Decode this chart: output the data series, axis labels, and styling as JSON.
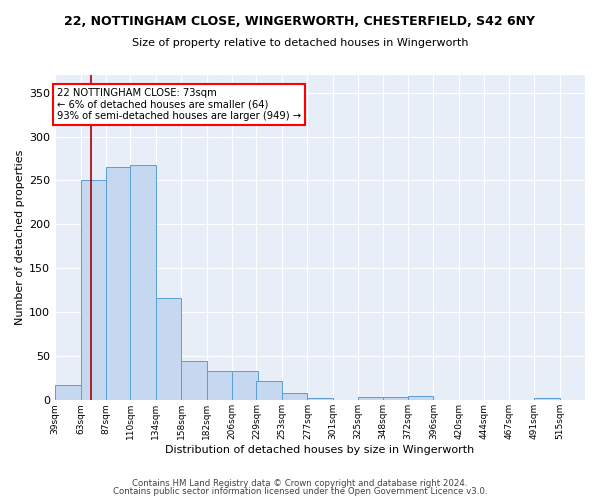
{
  "title_line1": "22, NOTTINGHAM CLOSE, WINGERWORTH, CHESTERFIELD, S42 6NY",
  "title_line2": "Size of property relative to detached houses in Wingerworth",
  "xlabel": "Distribution of detached houses by size in Wingerworth",
  "ylabel": "Number of detached properties",
  "bar_color": "#c5d8f0",
  "bar_edge_color": "#5a9fd4",
  "background_color": "#e8eef8",
  "grid_color": "#ffffff",
  "annotation_text": "22 NOTTINGHAM CLOSE: 73sqm\n← 6% of detached houses are smaller (64)\n93% of semi-detached houses are larger (949) →",
  "redline_x": 73,
  "categories": [
    "39sqm",
    "63sqm",
    "87sqm",
    "110sqm",
    "134sqm",
    "158sqm",
    "182sqm",
    "206sqm",
    "229sqm",
    "253sqm",
    "277sqm",
    "301sqm",
    "325sqm",
    "348sqm",
    "372sqm",
    "396sqm",
    "420sqm",
    "444sqm",
    "467sqm",
    "491sqm",
    "515sqm"
  ],
  "bin_edges": [
    39,
    63,
    87,
    110,
    134,
    158,
    182,
    206,
    229,
    253,
    277,
    301,
    325,
    348,
    372,
    396,
    420,
    444,
    467,
    491,
    515
  ],
  "bar_heights": [
    17,
    250,
    265,
    268,
    116,
    45,
    33,
    33,
    22,
    8,
    3,
    0,
    4,
    4,
    5,
    0,
    0,
    0,
    0,
    3,
    0
  ],
  "ylim": [
    0,
    370
  ],
  "yticks": [
    0,
    50,
    100,
    150,
    200,
    250,
    300,
    350
  ],
  "footer_line1": "Contains HM Land Registry data © Crown copyright and database right 2024.",
  "footer_line2": "Contains public sector information licensed under the Open Government Licence v3.0."
}
